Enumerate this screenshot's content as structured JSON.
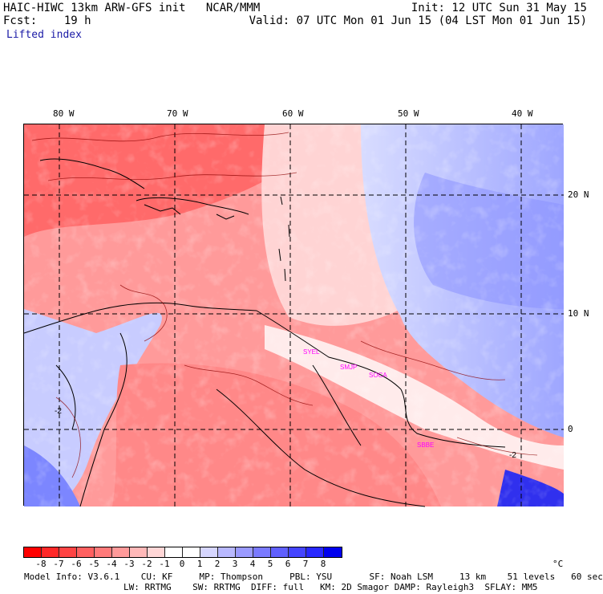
{
  "header": {
    "line1_left": "HAIC-HIWC 13km ARW-GFS init   NCAR/MMM",
    "line1_right": "Init: 12 UTC Sun 31 May 15",
    "line2_left": "Fcst:    19 h",
    "line2_right": "Valid: 07 UTC Mon 01 Jun 15 (04 LST Mon 01 Jun 15)",
    "field_name": "Lifted index"
  },
  "map": {
    "longitude_labels": [
      "80 W",
      "70 W",
      "60 W",
      "50 W",
      "40 W"
    ],
    "latitude_labels": [
      "20 N",
      "10 N",
      "0"
    ],
    "station_labels": [
      "SYEL",
      "SMJP",
      "SOCA",
      "SBBE"
    ],
    "contour_labels": [
      "-2",
      "-2"
    ],
    "colors": {
      "negative": "#ff3030",
      "positive": "#3040ff",
      "boundary": "#000000",
      "station": "#ff00ff"
    }
  },
  "colorbar": {
    "ticks": [
      "-8",
      "-7",
      "-6",
      "-5",
      "-4",
      "-3",
      "-2",
      "-1",
      "0",
      "1",
      "2",
      "3",
      "4",
      "5",
      "6",
      "7",
      "8"
    ],
    "unit": "°C",
    "colors": [
      "#ff0000",
      "#ff2828",
      "#ff4444",
      "#ff6060",
      "#ff7a7a",
      "#ff9a9a",
      "#ffb8b8",
      "#ffd6d6",
      "#ffffff",
      "#ffffff",
      "#d6d6ff",
      "#b8b8ff",
      "#9a9aff",
      "#7a7aff",
      "#6060ff",
      "#4444ff",
      "#2828ff",
      "#0000ee"
    ]
  },
  "footer": {
    "line1": "Model Info: V3.6.1    CU: KF     MP: Thompson     PBL: YSU       SF: Noah LSM     13 km    51 levels   60 sec",
    "line2": "LW: RRTMG    SW: RRTMG  DIFF: full   KM: 2D Smagor DAMP: Rayleigh3  SFLAY: MM5"
  }
}
